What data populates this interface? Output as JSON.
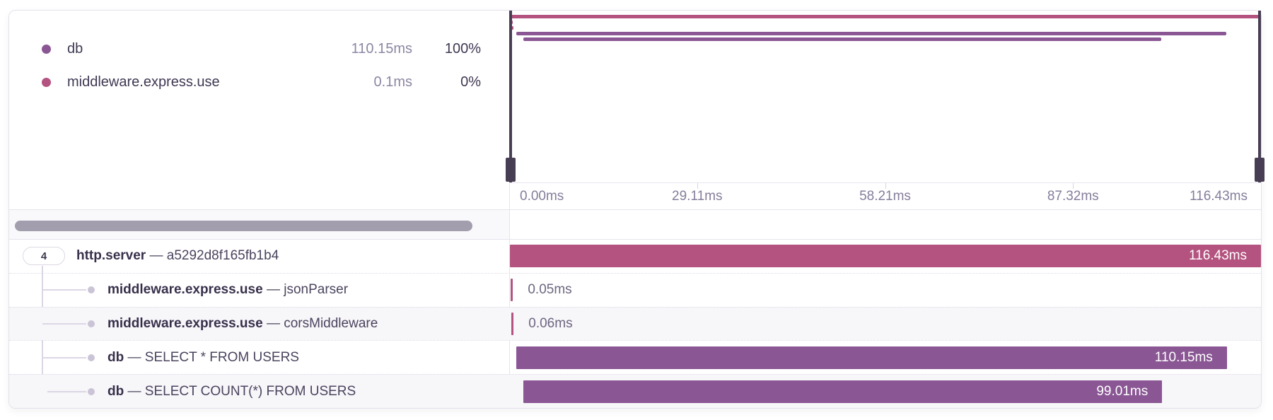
{
  "legend": {
    "items": [
      {
        "name": "db",
        "duration": "110.15ms",
        "percent": "100%",
        "color": "#8a5794"
      },
      {
        "name": "middleware.express.use",
        "duration": "0.1ms",
        "percent": "0%",
        "color": "#b4537f"
      }
    ]
  },
  "minimap": {
    "total_ms": 116.43,
    "spans": [
      {
        "start_ms": 0,
        "duration_ms": 116.43,
        "color": "#b4537f"
      },
      {
        "start_ms": 0.15,
        "duration_ms": 0.05,
        "color": "#b4537f"
      },
      {
        "start_ms": 0.25,
        "duration_ms": 0.06,
        "color": "#b4537f"
      },
      {
        "start_ms": 1.0,
        "duration_ms": 110.15,
        "color": "#8a5794"
      },
      {
        "start_ms": 2.1,
        "duration_ms": 99.01,
        "color": "#8a5794"
      }
    ],
    "axis_ticks": [
      "0.00ms",
      "29.11ms",
      "58.21ms",
      "87.32ms",
      "116.43ms"
    ]
  },
  "waterfall": {
    "total_ms": 116.43,
    "separator": "—",
    "rows": [
      {
        "badge": "4",
        "name": "http.server",
        "detail": "a5292d8f165fb1b4",
        "duration_label": "116.43ms",
        "start_ms": 0,
        "duration_ms": 116.43,
        "color": "#b4537f",
        "label_inside": true,
        "alt": false,
        "child": false
      },
      {
        "name": "middleware.express.use",
        "detail": "jsonParser",
        "duration_label": "0.05ms",
        "start_ms": 0.15,
        "duration_ms": 0.05,
        "color": "#b4537f",
        "label_inside": false,
        "alt": false,
        "child": true
      },
      {
        "name": "middleware.express.use",
        "detail": "corsMiddleware",
        "duration_label": "0.06ms",
        "start_ms": 0.25,
        "duration_ms": 0.06,
        "color": "#b4537f",
        "label_inside": false,
        "alt": true,
        "child": true
      },
      {
        "name": "db",
        "detail": "SELECT * FROM USERS",
        "duration_label": "110.15ms",
        "start_ms": 1.0,
        "duration_ms": 110.15,
        "color": "#8a5794",
        "label_inside": true,
        "alt": false,
        "child": true
      },
      {
        "name": "db",
        "detail": "SELECT COUNT(*) FROM USERS",
        "duration_label": "99.01ms",
        "start_ms": 2.1,
        "duration_ms": 99.01,
        "color": "#8a5794",
        "label_inside": true,
        "alt": true,
        "child": true
      }
    ]
  }
}
